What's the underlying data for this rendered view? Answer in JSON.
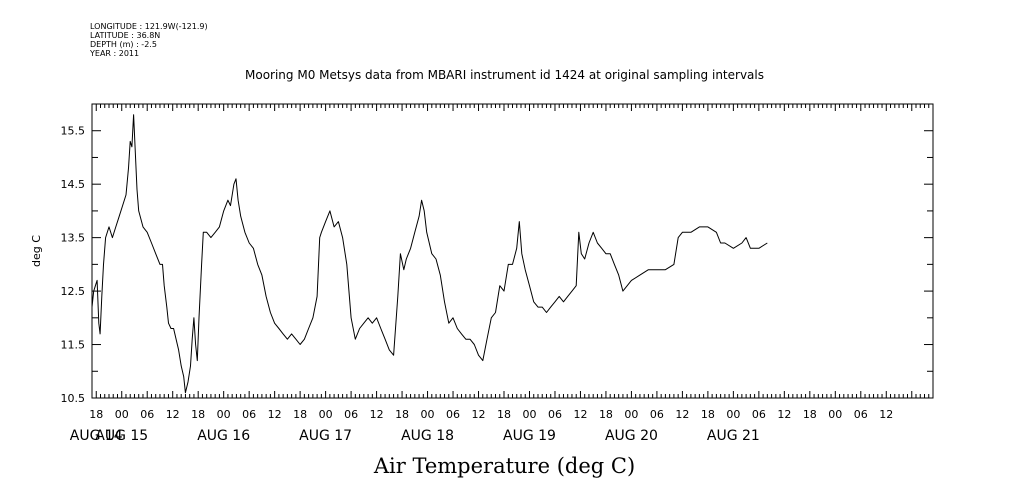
{
  "header": {
    "longitude": "LONGITUDE : 121.9W(-121.9)",
    "latitude": "LATITUDE : 36.8N",
    "depth": "DEPTH (m) : -2.5",
    "year": "YEAR : 2011"
  },
  "chart_data": {
    "type": "line",
    "title": "Mooring M0 Metsys data from MBARI instrument id 1424 at original sampling intervals",
    "xlabel": "Air Temperature (deg C)",
    "ylabel": "deg C",
    "ylim": [
      10.5,
      16.0
    ],
    "y_ticks": [
      "10.5",
      "11.5",
      "12.5",
      "13.5",
      "14.5",
      "15.5"
    ],
    "x_hours_range": [
      -7,
      191
    ],
    "x_tick_labels": [
      {
        "hour": -6,
        "label": "18"
      },
      {
        "hour": 0,
        "label": "00"
      },
      {
        "hour": 6,
        "label": "06"
      },
      {
        "hour": 12,
        "label": "12"
      },
      {
        "hour": 18,
        "label": "18"
      },
      {
        "hour": 24,
        "label": "00"
      },
      {
        "hour": 30,
        "label": "06"
      },
      {
        "hour": 36,
        "label": "12"
      },
      {
        "hour": 42,
        "label": "18"
      },
      {
        "hour": 48,
        "label": "00"
      },
      {
        "hour": 54,
        "label": "06"
      },
      {
        "hour": 60,
        "label": "12"
      },
      {
        "hour": 66,
        "label": "18"
      },
      {
        "hour": 72,
        "label": "00"
      },
      {
        "hour": 78,
        "label": "06"
      },
      {
        "hour": 84,
        "label": "12"
      },
      {
        "hour": 90,
        "label": "18"
      },
      {
        "hour": 96,
        "label": "00"
      },
      {
        "hour": 102,
        "label": "06"
      },
      {
        "hour": 108,
        "label": "12"
      },
      {
        "hour": 114,
        "label": "18"
      },
      {
        "hour": 120,
        "label": "00"
      },
      {
        "hour": 126,
        "label": "06"
      },
      {
        "hour": 132,
        "label": "12"
      },
      {
        "hour": 138,
        "label": "18"
      },
      {
        "hour": 144,
        "label": "00"
      },
      {
        "hour": 150,
        "label": "06"
      },
      {
        "hour": 156,
        "label": "12"
      },
      {
        "hour": 162,
        "label": "18"
      },
      {
        "hour": 168,
        "label": "00"
      },
      {
        "hour": 174,
        "label": "06"
      },
      {
        "hour": 180,
        "label": "12"
      }
    ],
    "date_labels": [
      {
        "hour": -6,
        "label": "AUG 14"
      },
      {
        "hour": 0,
        "label": "AUG 15"
      },
      {
        "hour": 24,
        "label": "AUG 16"
      },
      {
        "hour": 48,
        "label": "AUG 17"
      },
      {
        "hour": 72,
        "label": "AUG 18"
      },
      {
        "hour": 96,
        "label": "AUG 19"
      },
      {
        "hour": 120,
        "label": "AUG 20"
      },
      {
        "hour": 144,
        "label": "AUG 21"
      }
    ],
    "series": [
      {
        "points": [
          [
            -7.0,
            12.2
          ],
          [
            -6.6,
            12.5
          ],
          [
            -6.2,
            12.6
          ],
          [
            -5.8,
            12.7
          ],
          [
            -5.4,
            11.9
          ],
          [
            -5.1,
            11.7
          ],
          [
            -4.7,
            12.4
          ],
          [
            -4.3,
            13.0
          ],
          [
            -3.8,
            13.5
          ],
          [
            -3.0,
            13.7
          ],
          [
            -2.2,
            13.5
          ],
          [
            -1.4,
            13.7
          ],
          [
            -0.6,
            13.9
          ],
          [
            0.2,
            14.1
          ],
          [
            1.0,
            14.3
          ],
          [
            1.6,
            14.8
          ],
          [
            2.0,
            15.3
          ],
          [
            2.4,
            15.2
          ],
          [
            2.8,
            15.8
          ],
          [
            3.2,
            15.1
          ],
          [
            3.6,
            14.4
          ],
          [
            4.0,
            14.0
          ],
          [
            5.0,
            13.7
          ],
          [
            6.0,
            13.6
          ],
          [
            7.0,
            13.4
          ],
          [
            8.0,
            13.2
          ],
          [
            9.0,
            13.0
          ],
          [
            9.6,
            13.0
          ],
          [
            10.0,
            12.6
          ],
          [
            10.6,
            12.2
          ],
          [
            11.0,
            11.9
          ],
          [
            11.6,
            11.8
          ],
          [
            12.2,
            11.8
          ],
          [
            12.8,
            11.6
          ],
          [
            13.4,
            11.4
          ],
          [
            14.0,
            11.1
          ],
          [
            14.6,
            10.9
          ],
          [
            15.0,
            10.6
          ],
          [
            15.6,
            10.8
          ],
          [
            16.2,
            11.1
          ],
          [
            16.6,
            11.6
          ],
          [
            17.0,
            12.0
          ],
          [
            17.4,
            11.5
          ],
          [
            17.8,
            11.2
          ],
          [
            18.2,
            12.0
          ],
          [
            18.8,
            13.0
          ],
          [
            19.2,
            13.6
          ],
          [
            20.0,
            13.6
          ],
          [
            21.0,
            13.5
          ],
          [
            22.0,
            13.6
          ],
          [
            23.0,
            13.7
          ],
          [
            24.0,
            14.0
          ],
          [
            25.0,
            14.2
          ],
          [
            25.6,
            14.1
          ],
          [
            26.4,
            14.5
          ],
          [
            26.9,
            14.6
          ],
          [
            27.4,
            14.2
          ],
          [
            28.0,
            13.9
          ],
          [
            29.0,
            13.6
          ],
          [
            30.0,
            13.4
          ],
          [
            31.0,
            13.3
          ],
          [
            32.0,
            13.0
          ],
          [
            33.0,
            12.8
          ],
          [
            34.0,
            12.4
          ],
          [
            35.0,
            12.1
          ],
          [
            36.0,
            11.9
          ],
          [
            37.0,
            11.8
          ],
          [
            38.0,
            11.7
          ],
          [
            39.0,
            11.6
          ],
          [
            40.0,
            11.7
          ],
          [
            41.0,
            11.6
          ],
          [
            42.0,
            11.5
          ],
          [
            43.0,
            11.6
          ],
          [
            44.0,
            11.8
          ],
          [
            45.0,
            12.0
          ],
          [
            46.0,
            12.4
          ],
          [
            46.6,
            13.5
          ],
          [
            47.0,
            13.6
          ],
          [
            48.0,
            13.8
          ],
          [
            49.0,
            14.0
          ],
          [
            50.0,
            13.7
          ],
          [
            51.0,
            13.8
          ],
          [
            52.0,
            13.5
          ],
          [
            53.0,
            13.0
          ],
          [
            54.0,
            12.0
          ],
          [
            55.0,
            11.6
          ],
          [
            56.0,
            11.8
          ],
          [
            57.0,
            11.9
          ],
          [
            58.0,
            12.0
          ],
          [
            59.0,
            11.9
          ],
          [
            60.0,
            12.0
          ],
          [
            61.0,
            11.8
          ],
          [
            62.0,
            11.6
          ],
          [
            63.0,
            11.4
          ],
          [
            64.0,
            11.3
          ],
          [
            65.0,
            12.4
          ],
          [
            65.6,
            13.2
          ],
          [
            66.4,
            12.9
          ],
          [
            67.0,
            13.1
          ],
          [
            68.0,
            13.3
          ],
          [
            69.0,
            13.6
          ],
          [
            70.0,
            13.9
          ],
          [
            70.6,
            14.2
          ],
          [
            71.2,
            14.0
          ],
          [
            71.8,
            13.6
          ],
          [
            73.0,
            13.2
          ],
          [
            74.0,
            13.1
          ],
          [
            75.0,
            12.8
          ],
          [
            76.0,
            12.3
          ],
          [
            77.0,
            11.9
          ],
          [
            78.0,
            12.0
          ],
          [
            79.0,
            11.8
          ],
          [
            80.0,
            11.7
          ],
          [
            81.0,
            11.6
          ],
          [
            82.0,
            11.6
          ],
          [
            83.0,
            11.5
          ],
          [
            84.0,
            11.3
          ],
          [
            85.0,
            11.2
          ],
          [
            86.0,
            11.6
          ],
          [
            87.0,
            12.0
          ],
          [
            88.0,
            12.1
          ],
          [
            89.0,
            12.6
          ],
          [
            90.0,
            12.5
          ],
          [
            91.0,
            13.0
          ],
          [
            92.0,
            13.0
          ],
          [
            93.0,
            13.3
          ],
          [
            93.6,
            13.8
          ],
          [
            94.2,
            13.2
          ],
          [
            95.0,
            12.9
          ],
          [
            96.0,
            12.6
          ],
          [
            97.0,
            12.3
          ],
          [
            98.0,
            12.2
          ],
          [
            99.0,
            12.2
          ],
          [
            100.0,
            12.1
          ],
          [
            101.0,
            12.2
          ],
          [
            102.0,
            12.3
          ],
          [
            103.0,
            12.4
          ],
          [
            104.0,
            12.3
          ],
          [
            105.0,
            12.4
          ],
          [
            106.0,
            12.5
          ],
          [
            107.0,
            12.6
          ],
          [
            107.6,
            13.6
          ],
          [
            108.2,
            13.2
          ],
          [
            109.0,
            13.1
          ],
          [
            110.0,
            13.4
          ],
          [
            111.0,
            13.6
          ],
          [
            112.0,
            13.4
          ],
          [
            113.0,
            13.3
          ],
          [
            114.0,
            13.2
          ],
          [
            115.0,
            13.2
          ],
          [
            116.0,
            13.0
          ],
          [
            117.0,
            12.8
          ],
          [
            118.0,
            12.5
          ],
          [
            119.0,
            12.6
          ],
          [
            120.0,
            12.7
          ],
          [
            122.0,
            12.8
          ],
          [
            124.0,
            12.9
          ],
          [
            126.0,
            12.9
          ],
          [
            128.0,
            12.9
          ],
          [
            130.0,
            13.0
          ],
          [
            131.0,
            13.5
          ],
          [
            132.0,
            13.6
          ],
          [
            134.0,
            13.6
          ],
          [
            136.0,
            13.7
          ],
          [
            138.0,
            13.7
          ],
          [
            140.0,
            13.6
          ],
          [
            141.0,
            13.4
          ],
          [
            142.0,
            13.4
          ],
          [
            144.0,
            13.3
          ],
          [
            146.0,
            13.4
          ],
          [
            147.0,
            13.5
          ],
          [
            148.0,
            13.3
          ],
          [
            150.0,
            13.3
          ],
          [
            152.0,
            13.4
          ]
        ]
      }
    ]
  }
}
